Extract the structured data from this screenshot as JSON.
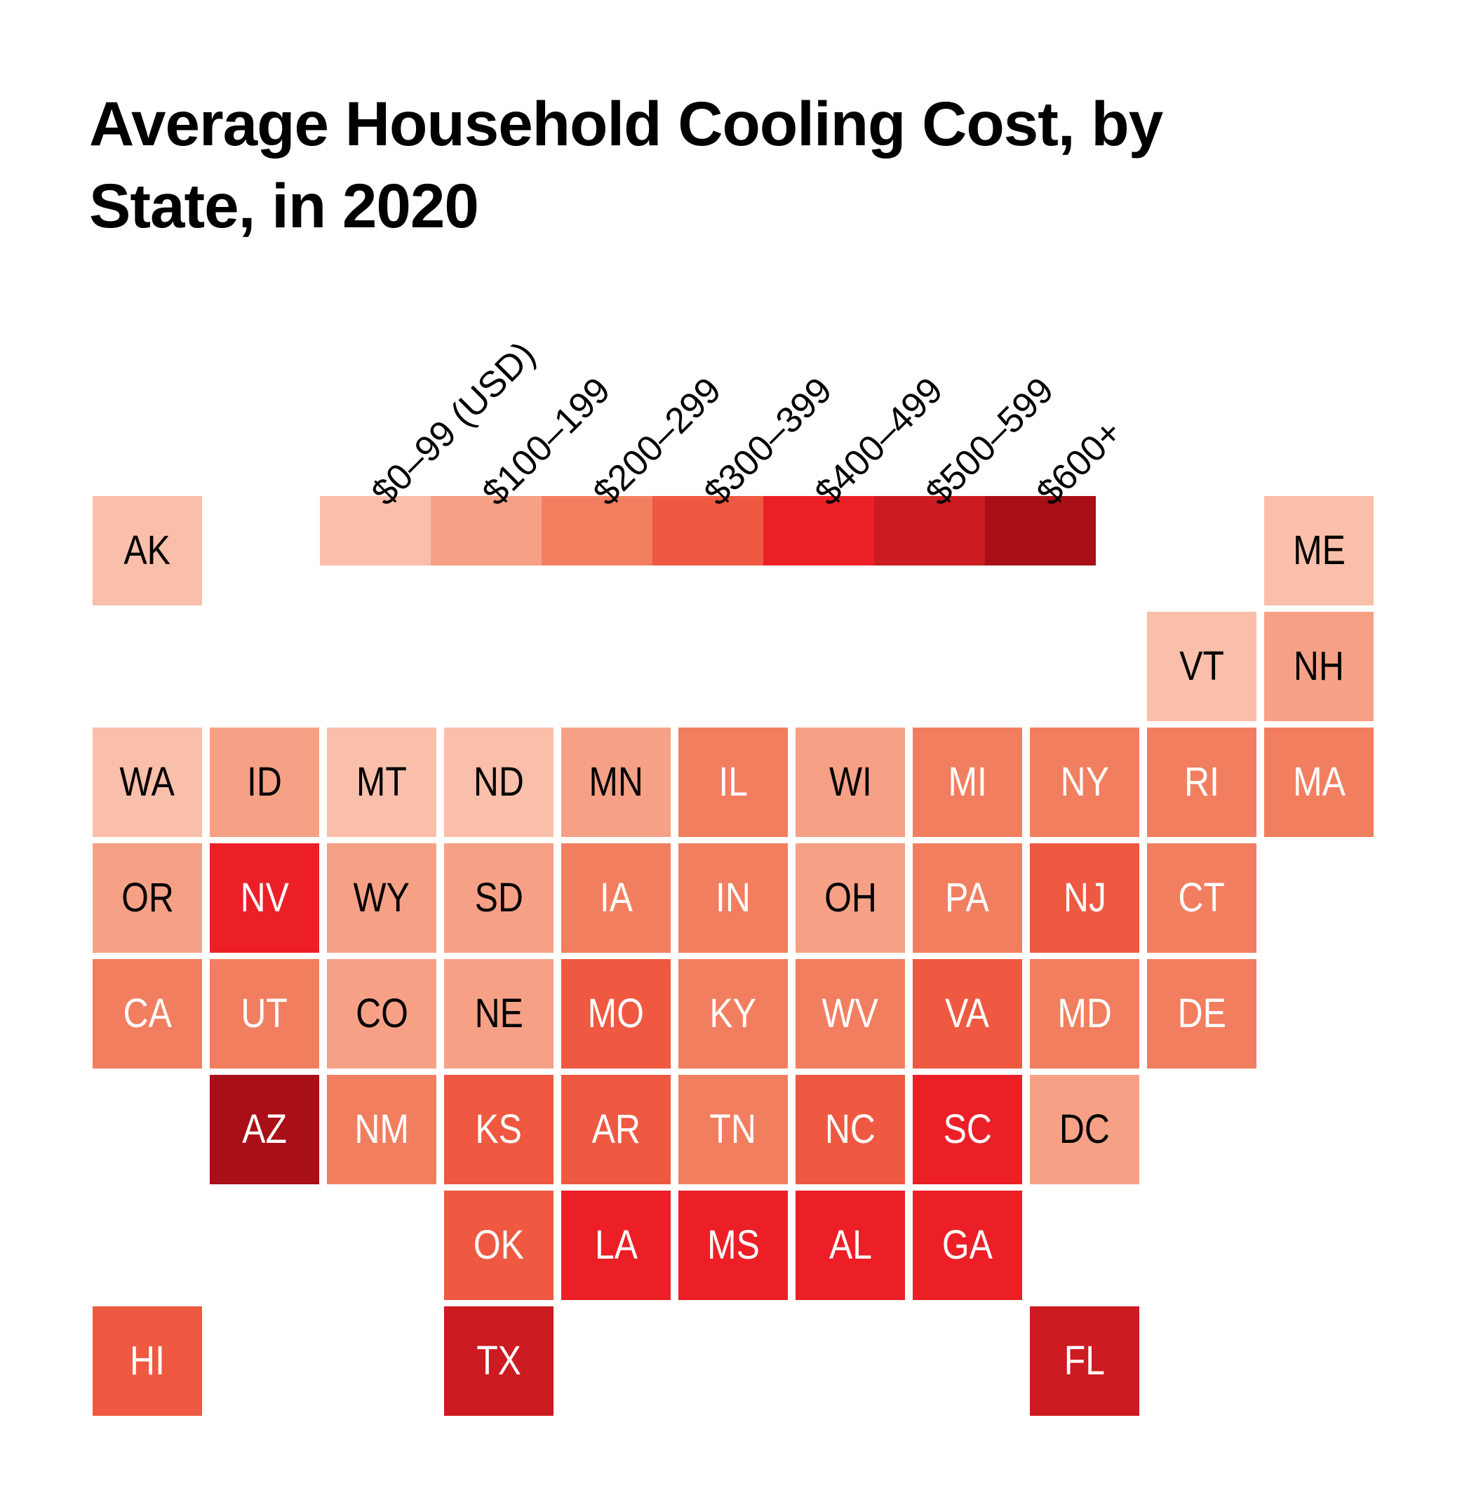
{
  "title": "Average Household Cooling Cost, by State, in 2020",
  "chart_data": {
    "type": "tile-map",
    "value_field": "cooling_cost_bin_usd",
    "legend": {
      "bins": [
        {
          "label": "$0–99 (USD)",
          "color": "#f9bfaa"
        },
        {
          "label": "$100–199",
          "color": "#f6a186"
        },
        {
          "label": "$200–299",
          "color": "#f27e60"
        },
        {
          "label": "$300–399",
          "color": "#ef5841"
        },
        {
          "label": "$400–499",
          "color": "#ec1f27"
        },
        {
          "label": "$500–599",
          "color": "#cc1b21"
        },
        {
          "label": "$600+",
          "color": "#a80f16"
        }
      ]
    },
    "states": [
      {
        "abbr": "AK",
        "bin": 0,
        "col": 0,
        "row": 0
      },
      {
        "abbr": "ME",
        "bin": 0,
        "col": 10,
        "row": 0
      },
      {
        "abbr": "VT",
        "bin": 0,
        "col": 9,
        "row": 1
      },
      {
        "abbr": "NH",
        "bin": 1,
        "col": 10,
        "row": 1
      },
      {
        "abbr": "WA",
        "bin": 0,
        "col": 0,
        "row": 2
      },
      {
        "abbr": "ID",
        "bin": 1,
        "col": 1,
        "row": 2
      },
      {
        "abbr": "MT",
        "bin": 0,
        "col": 2,
        "row": 2
      },
      {
        "abbr": "ND",
        "bin": 0,
        "col": 3,
        "row": 2
      },
      {
        "abbr": "MN",
        "bin": 1,
        "col": 4,
        "row": 2
      },
      {
        "abbr": "IL",
        "bin": 2,
        "col": 5,
        "row": 2
      },
      {
        "abbr": "WI",
        "bin": 1,
        "col": 6,
        "row": 2
      },
      {
        "abbr": "MI",
        "bin": 2,
        "col": 7,
        "row": 2
      },
      {
        "abbr": "NY",
        "bin": 2,
        "col": 8,
        "row": 2
      },
      {
        "abbr": "RI",
        "bin": 2,
        "col": 9,
        "row": 2
      },
      {
        "abbr": "MA",
        "bin": 2,
        "col": 10,
        "row": 2
      },
      {
        "abbr": "OR",
        "bin": 1,
        "col": 0,
        "row": 3
      },
      {
        "abbr": "NV",
        "bin": 4,
        "col": 1,
        "row": 3
      },
      {
        "abbr": "WY",
        "bin": 1,
        "col": 2,
        "row": 3
      },
      {
        "abbr": "SD",
        "bin": 1,
        "col": 3,
        "row": 3
      },
      {
        "abbr": "IA",
        "bin": 2,
        "col": 4,
        "row": 3
      },
      {
        "abbr": "IN",
        "bin": 2,
        "col": 5,
        "row": 3
      },
      {
        "abbr": "OH",
        "bin": 1,
        "col": 6,
        "row": 3
      },
      {
        "abbr": "PA",
        "bin": 2,
        "col": 7,
        "row": 3
      },
      {
        "abbr": "NJ",
        "bin": 3,
        "col": 8,
        "row": 3
      },
      {
        "abbr": "CT",
        "bin": 2,
        "col": 9,
        "row": 3
      },
      {
        "abbr": "CA",
        "bin": 2,
        "col": 0,
        "row": 4
      },
      {
        "abbr": "UT",
        "bin": 2,
        "col": 1,
        "row": 4
      },
      {
        "abbr": "CO",
        "bin": 1,
        "col": 2,
        "row": 4
      },
      {
        "abbr": "NE",
        "bin": 1,
        "col": 3,
        "row": 4
      },
      {
        "abbr": "MO",
        "bin": 3,
        "col": 4,
        "row": 4
      },
      {
        "abbr": "KY",
        "bin": 2,
        "col": 5,
        "row": 4
      },
      {
        "abbr": "WV",
        "bin": 2,
        "col": 6,
        "row": 4
      },
      {
        "abbr": "VA",
        "bin": 3,
        "col": 7,
        "row": 4
      },
      {
        "abbr": "MD",
        "bin": 2,
        "col": 8,
        "row": 4
      },
      {
        "abbr": "DE",
        "bin": 2,
        "col": 9,
        "row": 4
      },
      {
        "abbr": "AZ",
        "bin": 6,
        "col": 1,
        "row": 5
      },
      {
        "abbr": "NM",
        "bin": 2,
        "col": 2,
        "row": 5
      },
      {
        "abbr": "KS",
        "bin": 3,
        "col": 3,
        "row": 5
      },
      {
        "abbr": "AR",
        "bin": 3,
        "col": 4,
        "row": 5
      },
      {
        "abbr": "TN",
        "bin": 2,
        "col": 5,
        "row": 5
      },
      {
        "abbr": "NC",
        "bin": 3,
        "col": 6,
        "row": 5
      },
      {
        "abbr": "SC",
        "bin": 4,
        "col": 7,
        "row": 5
      },
      {
        "abbr": "DC",
        "bin": 1,
        "col": 8,
        "row": 5
      },
      {
        "abbr": "OK",
        "bin": 3,
        "col": 3,
        "row": 6
      },
      {
        "abbr": "LA",
        "bin": 4,
        "col": 4,
        "row": 6
      },
      {
        "abbr": "MS",
        "bin": 4,
        "col": 5,
        "row": 6
      },
      {
        "abbr": "AL",
        "bin": 4,
        "col": 6,
        "row": 6
      },
      {
        "abbr": "GA",
        "bin": 4,
        "col": 7,
        "row": 6
      },
      {
        "abbr": "HI",
        "bin": 3,
        "col": 0,
        "row": 7
      },
      {
        "abbr": "TX",
        "bin": 5,
        "col": 3,
        "row": 7
      },
      {
        "abbr": "FL",
        "bin": 5,
        "col": 8,
        "row": 7
      }
    ]
  }
}
